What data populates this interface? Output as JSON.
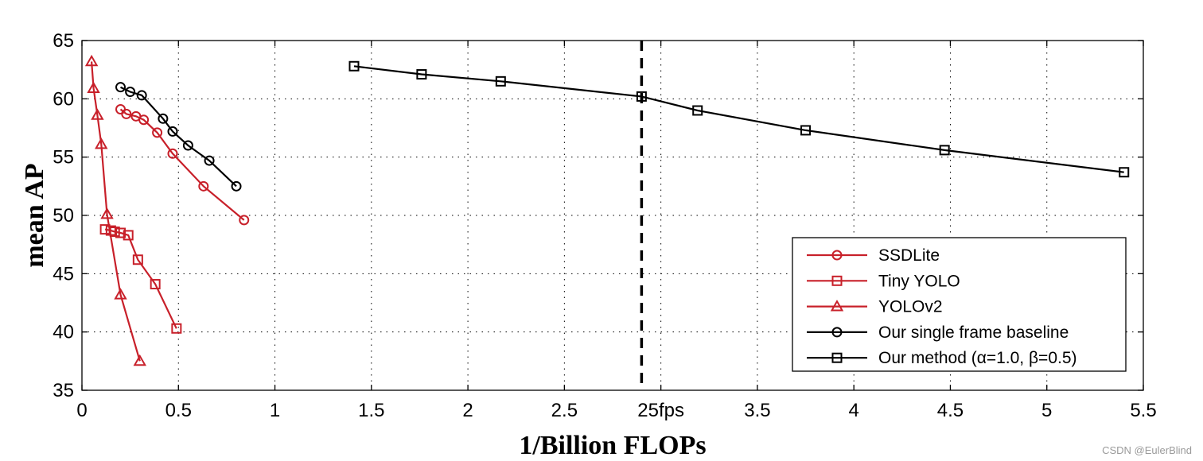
{
  "chart_data": {
    "type": "line",
    "xlabel": "1/Billion FLOPs",
    "ylabel": "mean AP",
    "xlim": [
      0,
      5.5
    ],
    "ylim": [
      35,
      65
    ],
    "xticks": [
      0,
      0.5,
      1,
      1.5,
      2,
      2.5,
      3,
      3.5,
      4,
      4.5,
      5,
      5.5
    ],
    "xtick_labels": [
      "0",
      "0.5",
      "1",
      "1.5",
      "2",
      "2.5",
      "25fps",
      "3.5",
      "4",
      "4.5",
      "5",
      "5.5"
    ],
    "yticks": [
      35,
      40,
      45,
      50,
      55,
      60,
      65
    ],
    "ytick_labels": [
      "35",
      "40",
      "45",
      "50",
      "55",
      "60",
      "65"
    ],
    "grid": true,
    "legend_position": "bottom-right",
    "reference_line": {
      "x": 2.9,
      "style": "dashed",
      "color": "#000000"
    },
    "series": [
      {
        "name": "SSDLite",
        "color": "#c8202a",
        "marker": "circle",
        "x": [
          0.2,
          0.23,
          0.28,
          0.32,
          0.39,
          0.47,
          0.63,
          0.84
        ],
        "y": [
          59.1,
          58.7,
          58.5,
          58.2,
          57.1,
          55.3,
          52.5,
          49.6
        ]
      },
      {
        "name": "Tiny YOLO",
        "color": "#c8202a",
        "marker": "square",
        "x": [
          0.12,
          0.15,
          0.17,
          0.2,
          0.24,
          0.29,
          0.38,
          0.49
        ],
        "y": [
          48.8,
          48.7,
          48.6,
          48.5,
          48.3,
          46.2,
          44.1,
          40.3
        ]
      },
      {
        "name": "YOLOv2",
        "color": "#c8202a",
        "marker": "triangle",
        "x": [
          0.05,
          0.06,
          0.08,
          0.1,
          0.13,
          0.2,
          0.3
        ],
        "y": [
          63.2,
          60.9,
          58.6,
          56.1,
          50.1,
          43.2,
          37.5
        ]
      },
      {
        "name": "Our single frame baseline",
        "color": "#000000",
        "marker": "circle",
        "x": [
          0.2,
          0.25,
          0.31,
          0.42,
          0.47,
          0.55,
          0.66,
          0.8
        ],
        "y": [
          61.0,
          60.6,
          60.3,
          58.3,
          57.2,
          56.0,
          54.7,
          52.5
        ]
      },
      {
        "name": "Our method (α=1.0, β=0.5)",
        "color": "#000000",
        "marker": "square",
        "x": [
          1.41,
          1.76,
          2.17,
          2.9,
          3.19,
          3.75,
          4.47,
          5.4
        ],
        "y": [
          62.8,
          62.1,
          61.5,
          60.2,
          59.0,
          57.3,
          55.6,
          53.7
        ]
      }
    ]
  },
  "watermark": "CSDN @EulerBlind"
}
